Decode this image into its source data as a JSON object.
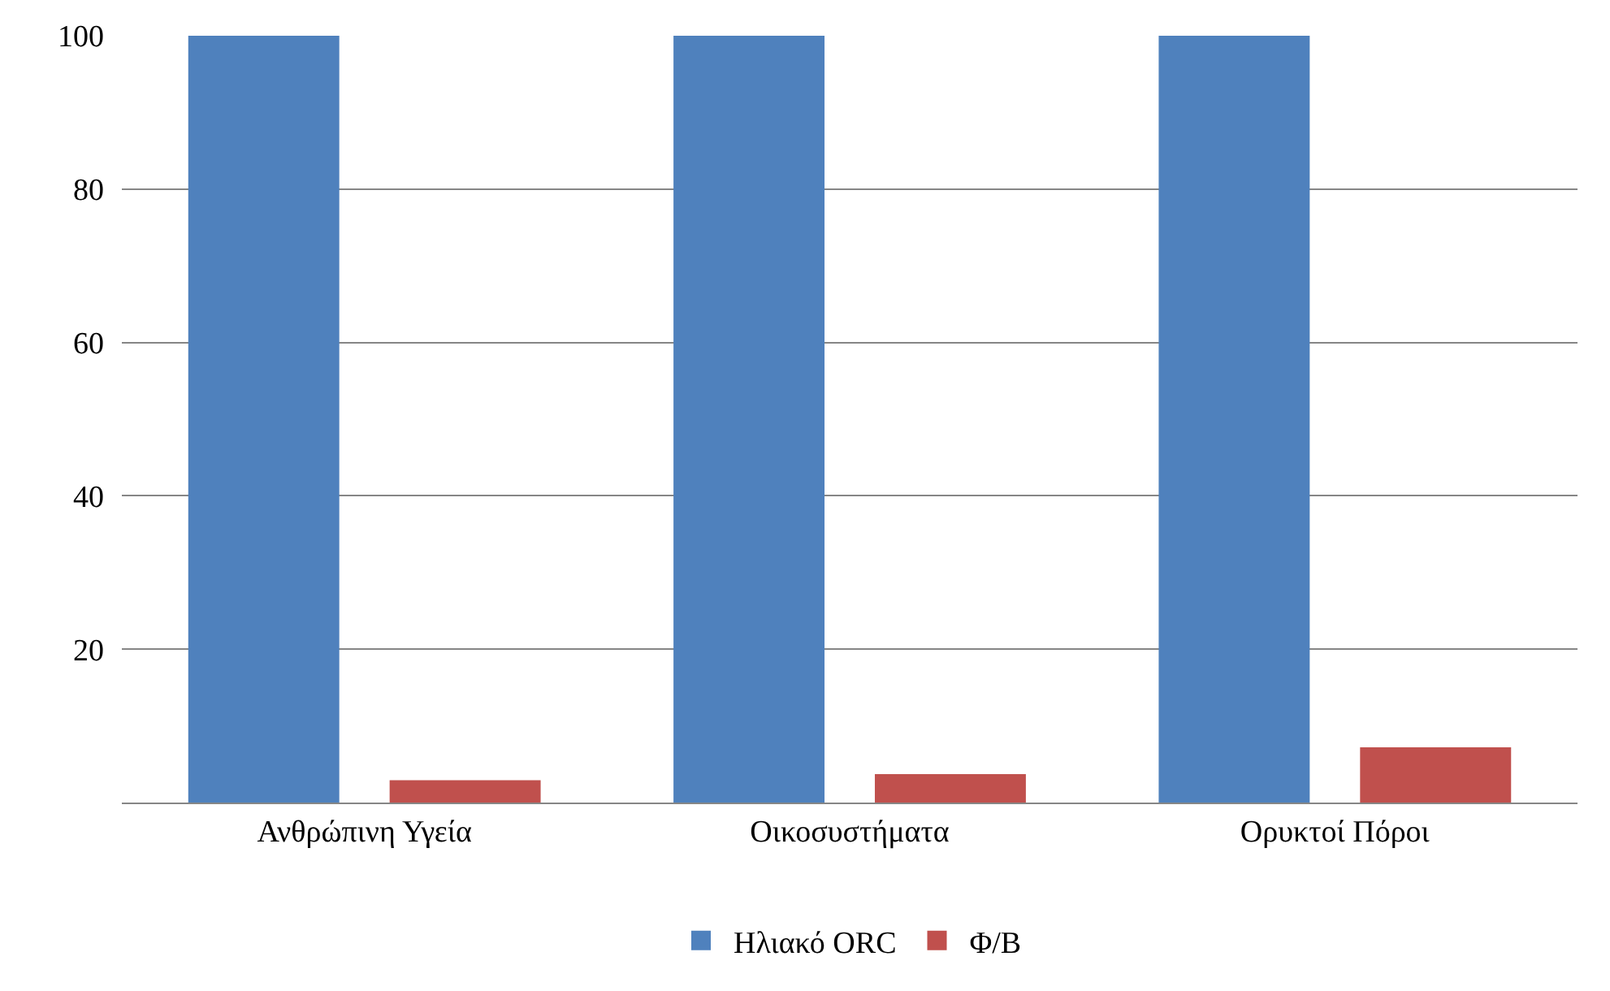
{
  "chart_data": {
    "type": "bar",
    "categories": [
      "Ανθρώπινη Υγεία",
      "Οικοσυστήματα",
      "Ορυκτοί Πόροι"
    ],
    "series": [
      {
        "name": "Ηλιακό ORC",
        "color": "#4f81bd",
        "values": [
          100,
          100,
          100
        ]
      },
      {
        "name": "Φ/Β",
        "color": "#c0504d",
        "values": [
          2.9,
          3.7,
          7.2
        ]
      }
    ],
    "ylim": [
      0,
      100
    ],
    "yticks": [
      20,
      40,
      60,
      80,
      100
    ],
    "grid": "y",
    "legend": "bottom"
  }
}
